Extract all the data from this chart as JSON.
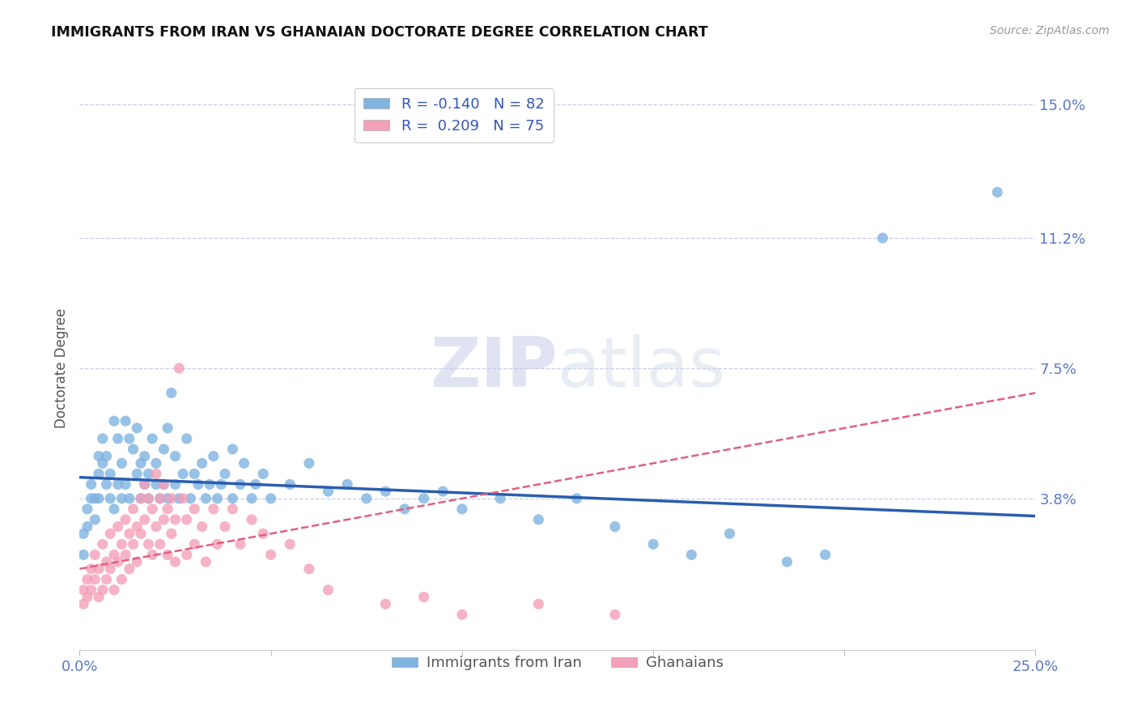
{
  "title": "IMMIGRANTS FROM IRAN VS GHANAIAN DOCTORATE DEGREE CORRELATION CHART",
  "source": "Source: ZipAtlas.com",
  "ylabel": "Doctorate Degree",
  "yticks": [
    0.0,
    0.038,
    0.075,
    0.112,
    0.15
  ],
  "ytick_labels": [
    "",
    "3.8%",
    "7.5%",
    "11.2%",
    "15.0%"
  ],
  "xlim": [
    0.0,
    0.25
  ],
  "ylim": [
    -0.005,
    0.155
  ],
  "legend_title_iran": "Immigrants from Iran",
  "legend_title_ghana": "Ghanaians",
  "iran_color": "#7fb3e0",
  "ghana_color": "#f4a0b8",
  "iran_line_color": "#2a5db0",
  "ghana_line_color": "#e06080",
  "watermark_zip": "ZIP",
  "watermark_atlas": "atlas",
  "grid_color": "#c8cce8",
  "background_color": "#ffffff",
  "title_color": "#111111",
  "tick_color": "#5b78c4",
  "trend_iran": {
    "x_start": 0.0,
    "y_start": 0.044,
    "x_end": 0.25,
    "y_end": 0.033
  },
  "trend_ghana": {
    "x_start": 0.0,
    "y_start": 0.018,
    "x_end": 0.25,
    "y_end": 0.068
  },
  "scatter_iran": [
    [
      0.001,
      0.022
    ],
    [
      0.001,
      0.028
    ],
    [
      0.002,
      0.03
    ],
    [
      0.002,
      0.035
    ],
    [
      0.003,
      0.038
    ],
    [
      0.003,
      0.042
    ],
    [
      0.004,
      0.032
    ],
    [
      0.004,
      0.038
    ],
    [
      0.005,
      0.045
    ],
    [
      0.005,
      0.05
    ],
    [
      0.005,
      0.038
    ],
    [
      0.006,
      0.048
    ],
    [
      0.006,
      0.055
    ],
    [
      0.007,
      0.042
    ],
    [
      0.007,
      0.05
    ],
    [
      0.008,
      0.038
    ],
    [
      0.008,
      0.045
    ],
    [
      0.009,
      0.06
    ],
    [
      0.009,
      0.035
    ],
    [
      0.01,
      0.055
    ],
    [
      0.01,
      0.042
    ],
    [
      0.011,
      0.048
    ],
    [
      0.011,
      0.038
    ],
    [
      0.012,
      0.06
    ],
    [
      0.012,
      0.042
    ],
    [
      0.013,
      0.055
    ],
    [
      0.013,
      0.038
    ],
    [
      0.014,
      0.052
    ],
    [
      0.015,
      0.045
    ],
    [
      0.015,
      0.058
    ],
    [
      0.016,
      0.038
    ],
    [
      0.016,
      0.048
    ],
    [
      0.017,
      0.042
    ],
    [
      0.017,
      0.05
    ],
    [
      0.018,
      0.038
    ],
    [
      0.018,
      0.045
    ],
    [
      0.019,
      0.055
    ],
    [
      0.02,
      0.042
    ],
    [
      0.02,
      0.048
    ],
    [
      0.021,
      0.038
    ],
    [
      0.022,
      0.052
    ],
    [
      0.022,
      0.042
    ],
    [
      0.023,
      0.058
    ],
    [
      0.023,
      0.038
    ],
    [
      0.024,
      0.068
    ],
    [
      0.025,
      0.042
    ],
    [
      0.025,
      0.05
    ],
    [
      0.026,
      0.038
    ],
    [
      0.027,
      0.045
    ],
    [
      0.028,
      0.055
    ],
    [
      0.029,
      0.038
    ],
    [
      0.03,
      0.045
    ],
    [
      0.031,
      0.042
    ],
    [
      0.032,
      0.048
    ],
    [
      0.033,
      0.038
    ],
    [
      0.034,
      0.042
    ],
    [
      0.035,
      0.05
    ],
    [
      0.036,
      0.038
    ],
    [
      0.037,
      0.042
    ],
    [
      0.038,
      0.045
    ],
    [
      0.04,
      0.052
    ],
    [
      0.04,
      0.038
    ],
    [
      0.042,
      0.042
    ],
    [
      0.043,
      0.048
    ],
    [
      0.045,
      0.038
    ],
    [
      0.046,
      0.042
    ],
    [
      0.048,
      0.045
    ],
    [
      0.05,
      0.038
    ],
    [
      0.055,
      0.042
    ],
    [
      0.06,
      0.048
    ],
    [
      0.065,
      0.04
    ],
    [
      0.07,
      0.042
    ],
    [
      0.075,
      0.038
    ],
    [
      0.08,
      0.04
    ],
    [
      0.085,
      0.035
    ],
    [
      0.09,
      0.038
    ],
    [
      0.095,
      0.04
    ],
    [
      0.1,
      0.035
    ],
    [
      0.11,
      0.038
    ],
    [
      0.12,
      0.032
    ],
    [
      0.13,
      0.038
    ],
    [
      0.14,
      0.03
    ],
    [
      0.15,
      0.025
    ],
    [
      0.16,
      0.022
    ],
    [
      0.17,
      0.028
    ],
    [
      0.185,
      0.02
    ],
    [
      0.195,
      0.022
    ],
    [
      0.21,
      0.112
    ],
    [
      0.24,
      0.125
    ]
  ],
  "scatter_ghana": [
    [
      0.001,
      0.008
    ],
    [
      0.001,
      0.012
    ],
    [
      0.002,
      0.015
    ],
    [
      0.002,
      0.01
    ],
    [
      0.003,
      0.018
    ],
    [
      0.003,
      0.012
    ],
    [
      0.004,
      0.022
    ],
    [
      0.004,
      0.015
    ],
    [
      0.005,
      0.01
    ],
    [
      0.005,
      0.018
    ],
    [
      0.006,
      0.025
    ],
    [
      0.006,
      0.012
    ],
    [
      0.007,
      0.02
    ],
    [
      0.007,
      0.015
    ],
    [
      0.008,
      0.028
    ],
    [
      0.008,
      0.018
    ],
    [
      0.009,
      0.022
    ],
    [
      0.009,
      0.012
    ],
    [
      0.01,
      0.03
    ],
    [
      0.01,
      0.02
    ],
    [
      0.011,
      0.025
    ],
    [
      0.011,
      0.015
    ],
    [
      0.012,
      0.032
    ],
    [
      0.012,
      0.022
    ],
    [
      0.013,
      0.028
    ],
    [
      0.013,
      0.018
    ],
    [
      0.014,
      0.035
    ],
    [
      0.014,
      0.025
    ],
    [
      0.015,
      0.03
    ],
    [
      0.015,
      0.02
    ],
    [
      0.016,
      0.038
    ],
    [
      0.016,
      0.028
    ],
    [
      0.017,
      0.042
    ],
    [
      0.017,
      0.032
    ],
    [
      0.018,
      0.038
    ],
    [
      0.018,
      0.025
    ],
    [
      0.019,
      0.035
    ],
    [
      0.019,
      0.022
    ],
    [
      0.02,
      0.045
    ],
    [
      0.02,
      0.03
    ],
    [
      0.021,
      0.038
    ],
    [
      0.021,
      0.025
    ],
    [
      0.022,
      0.042
    ],
    [
      0.022,
      0.032
    ],
    [
      0.023,
      0.035
    ],
    [
      0.023,
      0.022
    ],
    [
      0.024,
      0.038
    ],
    [
      0.024,
      0.028
    ],
    [
      0.025,
      0.032
    ],
    [
      0.025,
      0.02
    ],
    [
      0.026,
      0.075
    ],
    [
      0.027,
      0.038
    ],
    [
      0.028,
      0.032
    ],
    [
      0.028,
      0.022
    ],
    [
      0.03,
      0.035
    ],
    [
      0.03,
      0.025
    ],
    [
      0.032,
      0.03
    ],
    [
      0.033,
      0.02
    ],
    [
      0.035,
      0.035
    ],
    [
      0.036,
      0.025
    ],
    [
      0.038,
      0.03
    ],
    [
      0.04,
      0.035
    ],
    [
      0.042,
      0.025
    ],
    [
      0.045,
      0.032
    ],
    [
      0.048,
      0.028
    ],
    [
      0.05,
      0.022
    ],
    [
      0.055,
      0.025
    ],
    [
      0.06,
      0.018
    ],
    [
      0.065,
      0.012
    ],
    [
      0.08,
      0.008
    ],
    [
      0.09,
      0.01
    ],
    [
      0.1,
      0.005
    ],
    [
      0.12,
      0.008
    ],
    [
      0.14,
      0.005
    ]
  ]
}
